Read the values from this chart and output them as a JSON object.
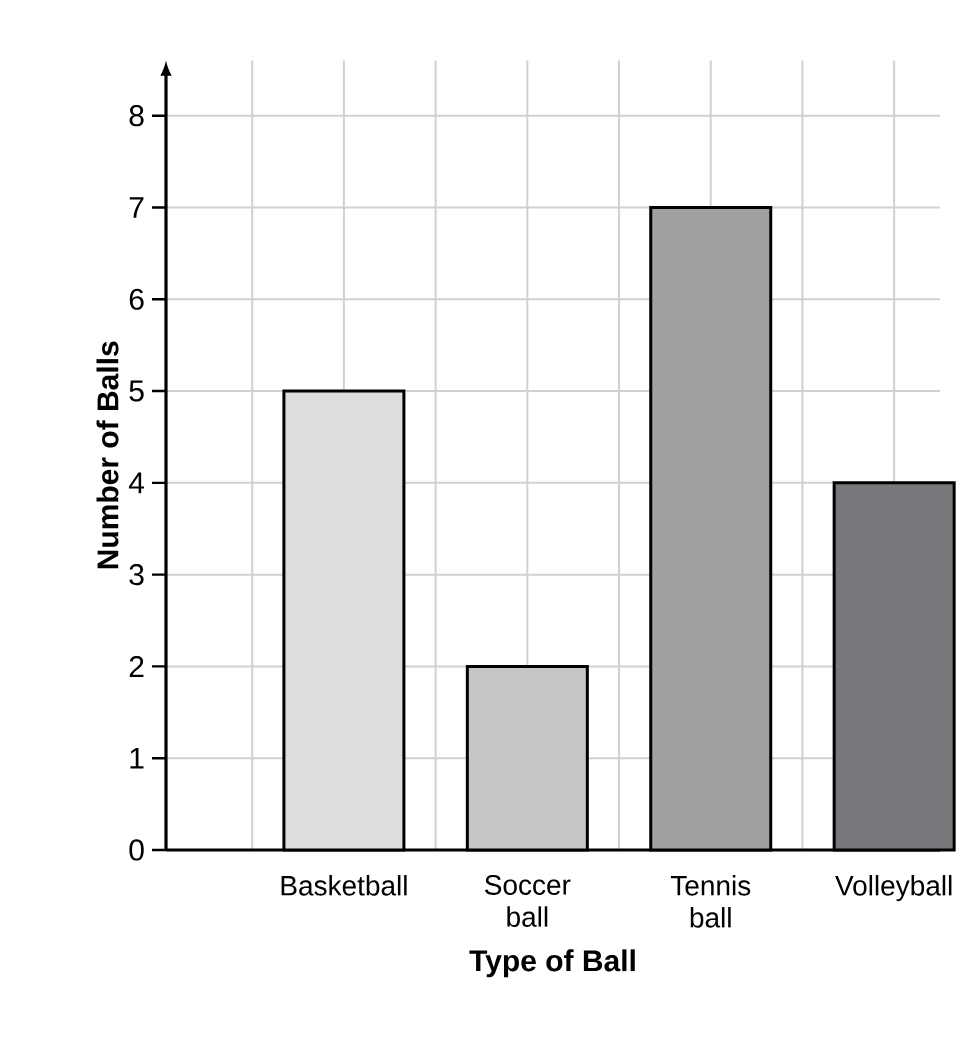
{
  "chart_data": {
    "type": "bar",
    "xlabel": "Type of Ball",
    "ylabel": "Number of Balls",
    "categories": [
      "Basketball",
      "Soccer ball",
      "Tennis ball",
      "Volleyball"
    ],
    "values": [
      5,
      2,
      7,
      4
    ],
    "colors": [
      "#dcdddf",
      "#c5c6c8",
      "#9fa0a2",
      "#77787b"
    ],
    "ylim": [
      0,
      8.6
    ],
    "yticks": [
      0,
      1,
      2,
      3,
      4,
      5,
      6,
      7,
      8
    ],
    "grid": true
  }
}
